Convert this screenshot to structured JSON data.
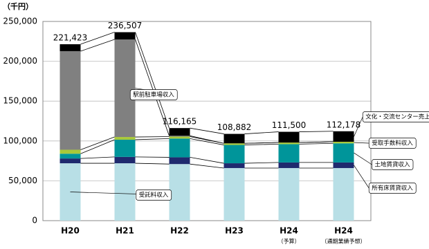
{
  "chart_data": {
    "type": "stacked-bar",
    "unit_label": "（千円）",
    "categories": [
      "H20",
      "H21",
      "H22",
      "H23",
      "H24",
      "H24"
    ],
    "category_notes": [
      null,
      null,
      null,
      null,
      "（予算）",
      "（通期業績予想）"
    ],
    "series": [
      {
        "name": "受託料収入",
        "color": "#b8dfe6",
        "values": [
          72000,
          72000,
          71000,
          66000,
          66000,
          66000
        ]
      },
      {
        "name": "所有床賃貸収入",
        "color": "#1f2a6e",
        "values": [
          6000,
          8000,
          8500,
          6000,
          7000,
          7000
        ]
      },
      {
        "name": "土地賃貸収入",
        "color": "#00959a",
        "values": [
          6000,
          21600,
          23500,
          23000,
          23000,
          24000
        ]
      },
      {
        "name": "受取手数料収入",
        "color": "#a8c83a",
        "values": [
          5000,
          3400,
          2500,
          2000,
          2000,
          2000
        ]
      },
      {
        "name": "駅前駐車場収入",
        "color": "#808080",
        "values": [
          123700,
          122400,
          1000,
          0,
          0,
          0
        ]
      },
      {
        "name": "文化・交流センター売上",
        "color": "#000000",
        "values": [
          8723,
          9107,
          9665,
          11882,
          13500,
          13178
        ]
      }
    ],
    "totals": [
      221423,
      236507,
      116165,
      108882,
      111500,
      112178
    ],
    "total_labels": [
      "221,423",
      "236,507",
      "116,165",
      "108,882",
      "111,500",
      "112,178"
    ],
    "ylim": [
      0,
      250000
    ],
    "yticks": [
      {
        "value": 0,
        "label": "0"
      },
      {
        "value": 50000,
        "label": "50,000"
      },
      {
        "value": 100000,
        "label": "100,000"
      },
      {
        "value": 150000,
        "label": "150,000"
      },
      {
        "value": 200000,
        "label": "200,000"
      },
      {
        "value": 250000,
        "label": "250,000"
      }
    ],
    "grid": true
  }
}
